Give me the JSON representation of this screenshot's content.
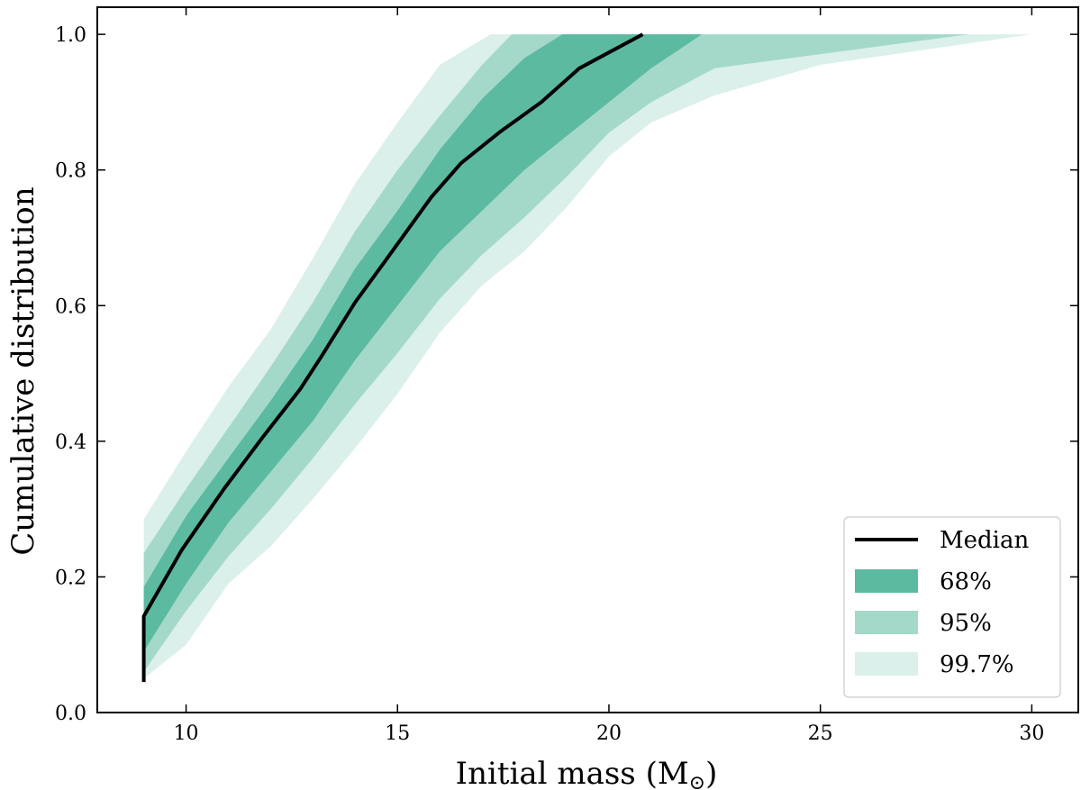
{
  "chart_data": {
    "type": "area",
    "xlabel": "Initial mass (M",
    "xlabel_symbol": "⊙",
    "xlabel_close": ")",
    "ylabel": "Cumulative distribution",
    "xlim": [
      7.9,
      31.1
    ],
    "ylim": [
      0.0,
      1.04
    ],
    "xticks": [
      10,
      15,
      20,
      25,
      30
    ],
    "yticks": [
      0.0,
      0.2,
      0.4,
      0.6,
      0.8,
      1.0
    ],
    "xtick_labels": [
      "10",
      "15",
      "20",
      "25",
      "30"
    ],
    "ytick_labels": [
      "0.0",
      "0.2",
      "0.4",
      "0.6",
      "0.8",
      "1.0"
    ],
    "grid": false,
    "legend_position": "bottom-right",
    "colors": {
      "median": "#000000",
      "band68": "#5cbaa0",
      "band95": "#a4d9c9",
      "band997": "#dbf0ea"
    },
    "series": [
      {
        "name": "Median",
        "kind": "line",
        "points": [
          [
            9.0,
            0.045
          ],
          [
            9.0,
            0.142
          ],
          [
            9.9,
            0.24
          ],
          [
            10.9,
            0.33
          ],
          [
            11.8,
            0.405
          ],
          [
            12.7,
            0.477
          ],
          [
            13.2,
            0.525
          ],
          [
            14.0,
            0.605
          ],
          [
            14.7,
            0.665
          ],
          [
            15.8,
            0.76
          ],
          [
            16.5,
            0.81
          ],
          [
            17.4,
            0.855
          ],
          [
            18.4,
            0.9
          ],
          [
            19.3,
            0.95
          ],
          [
            20.8,
            1.0
          ]
        ]
      },
      {
        "name": "68%",
        "kind": "band",
        "lower": [
          [
            9.0,
            0.045
          ],
          [
            9.0,
            0.09
          ],
          [
            10.0,
            0.19
          ],
          [
            11.0,
            0.28
          ],
          [
            12.0,
            0.355
          ],
          [
            13.0,
            0.43
          ],
          [
            14.0,
            0.52
          ],
          [
            15.0,
            0.6
          ],
          [
            16.0,
            0.68
          ],
          [
            17.0,
            0.74
          ],
          [
            18.0,
            0.8
          ],
          [
            19.0,
            0.85
          ],
          [
            20.0,
            0.9
          ],
          [
            21.0,
            0.95
          ],
          [
            22.2,
            1.0
          ]
        ],
        "upper": [
          [
            9.0,
            0.045
          ],
          [
            9.0,
            0.185
          ],
          [
            10.0,
            0.29
          ],
          [
            11.0,
            0.375
          ],
          [
            12.0,
            0.46
          ],
          [
            13.0,
            0.55
          ],
          [
            14.0,
            0.655
          ],
          [
            15.0,
            0.74
          ],
          [
            16.0,
            0.83
          ],
          [
            17.0,
            0.905
          ],
          [
            18.0,
            0.965
          ],
          [
            18.9,
            1.0
          ]
        ],
        "cap": 23.6
      },
      {
        "name": "95%",
        "kind": "band",
        "lower": [
          [
            9.0,
            0.045
          ],
          [
            9.0,
            0.06
          ],
          [
            10.0,
            0.15
          ],
          [
            11.0,
            0.23
          ],
          [
            12.0,
            0.3
          ],
          [
            13.0,
            0.375
          ],
          [
            14.0,
            0.455
          ],
          [
            15.0,
            0.53
          ],
          [
            16.0,
            0.61
          ],
          [
            17.0,
            0.675
          ],
          [
            18.0,
            0.73
          ],
          [
            19.0,
            0.79
          ],
          [
            20.0,
            0.855
          ],
          [
            21.0,
            0.9
          ],
          [
            22.5,
            0.95
          ],
          [
            28.5,
            1.0
          ]
        ],
        "upper": [
          [
            9.0,
            0.045
          ],
          [
            9.0,
            0.235
          ],
          [
            10.0,
            0.33
          ],
          [
            11.0,
            0.42
          ],
          [
            12.0,
            0.51
          ],
          [
            13.0,
            0.605
          ],
          [
            14.0,
            0.71
          ],
          [
            15.0,
            0.8
          ],
          [
            16.0,
            0.88
          ],
          [
            17.0,
            0.955
          ],
          [
            17.7,
            1.0
          ]
        ],
        "cap": 28.5
      },
      {
        "name": "99.7%",
        "kind": "band",
        "lower": [
          [
            9.0,
            0.045
          ],
          [
            9.0,
            0.05
          ],
          [
            10.0,
            0.1
          ],
          [
            11.0,
            0.19
          ],
          [
            12.0,
            0.245
          ],
          [
            13.0,
            0.315
          ],
          [
            14.0,
            0.39
          ],
          [
            15.0,
            0.47
          ],
          [
            16.0,
            0.56
          ],
          [
            17.0,
            0.63
          ],
          [
            18.0,
            0.68
          ],
          [
            19.0,
            0.745
          ],
          [
            20.0,
            0.82
          ],
          [
            21.0,
            0.87
          ],
          [
            22.5,
            0.91
          ],
          [
            25.0,
            0.955
          ],
          [
            30.0,
            1.0
          ]
        ],
        "upper": [
          [
            9.0,
            0.045
          ],
          [
            9.0,
            0.285
          ],
          [
            10.0,
            0.385
          ],
          [
            11.0,
            0.48
          ],
          [
            12.0,
            0.565
          ],
          [
            13.0,
            0.67
          ],
          [
            14.0,
            0.78
          ],
          [
            15.0,
            0.87
          ],
          [
            16.0,
            0.955
          ],
          [
            17.2,
            1.0
          ]
        ],
        "cap": 30.0
      }
    ],
    "legend": [
      {
        "label": "Median",
        "kind": "line"
      },
      {
        "label": "68%",
        "kind": "patch"
      },
      {
        "label": "95%",
        "kind": "patch"
      },
      {
        "label": "99.7%",
        "kind": "patch"
      }
    ]
  }
}
